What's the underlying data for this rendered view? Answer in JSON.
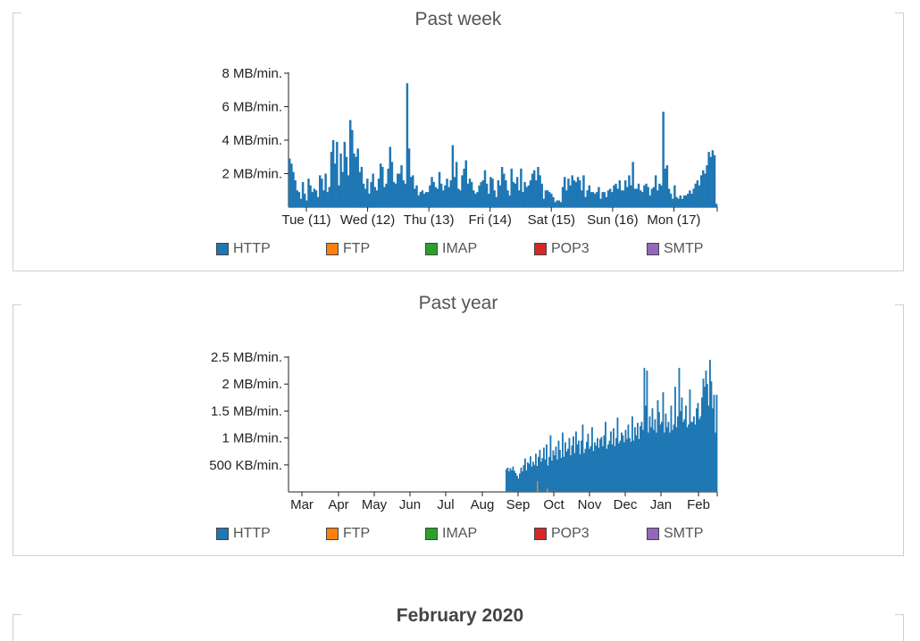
{
  "panels": {
    "week": {
      "title": "Past week"
    },
    "year": {
      "title": "Past year"
    }
  },
  "month_heading": "February 2020",
  "legend": [
    {
      "label": "HTTP",
      "color": "#1f77b4"
    },
    {
      "label": "FTP",
      "color": "#ff7f0e"
    },
    {
      "label": "IMAP",
      "color": "#2ca02c"
    },
    {
      "label": "POP3",
      "color": "#d62728"
    },
    {
      "label": "SMTP",
      "color": "#9467bd"
    }
  ],
  "chart_data": [
    {
      "type": "bar",
      "title": "Past week",
      "x_ticks": [
        "Tue (11)",
        "Wed (12)",
        "Thu (13)",
        "Fri (14)",
        "Sat (15)",
        "Sun (16)",
        "Mon (17)"
      ],
      "y_ticks": [
        "2 MB/min.",
        "4 MB/min.",
        "6 MB/min.",
        "8 MB/min."
      ],
      "ylim": [
        0,
        8
      ],
      "series": [
        {
          "name": "HTTP",
          "color": "#1f77b4",
          "values": [
            2.9,
            2.6,
            2.1,
            1.6,
            1.0,
            0.9,
            0.5,
            1.5,
            0.8,
            0.4,
            1.7,
            1.3,
            0.9,
            1.1,
            1.0,
            0.6,
            1.9,
            1.7,
            1.0,
            2.0,
            0.9,
            1.2,
            3.3,
            4.0,
            2.6,
            3.9,
            1.3,
            3.2,
            2.1,
            3.9,
            3.0,
            1.9,
            5.2,
            4.6,
            3.2,
            3.0,
            3.5,
            2.1,
            2.4,
            1.4,
            1.1,
            1.7,
            0.8,
            1.5,
            2.0,
            1.2,
            1.0,
            1.7,
            2.6,
            2.4,
            1.2,
            1.4,
            2.3,
            3.6,
            2.7,
            1.5,
            1.4,
            2.0,
            2.0,
            2.5,
            1.6,
            1.4,
            7.4,
            3.5,
            1.8,
            1.9,
            1.1,
            1.3,
            0.7,
            0.9,
            1.0,
            0.8,
            0.9,
            0.9,
            1.3,
            1.8,
            1.5,
            1.2,
            1.1,
            2.1,
            1.4,
            1.0,
            1.3,
            1.7,
            1.2,
            1.6,
            3.7,
            1.8,
            2.7,
            1.1,
            1.0,
            1.9,
            2.3,
            2.8,
            1.4,
            1.7,
            1.5,
            1.0,
            0.8,
            0.9,
            1.3,
            1.5,
            1.6,
            2.2,
            1.4,
            0.8,
            1.8,
            1.7,
            1.0,
            0.6,
            1.6,
            1.3,
            2.4,
            2.0,
            1.6,
            1.0,
            0.7,
            2.3,
            1.5,
            1.4,
            1.8,
            1.0,
            2.3,
            0.9,
            1.5,
            1.2,
            1.3,
            1.6,
            2.0,
            2.2,
            1.6,
            2.4,
            1.9,
            1.4,
            0.5,
            1.0,
            1.0,
            0.9,
            0.8,
            0.6,
            0.3,
            0.4,
            0.4,
            0.3,
            1.2,
            1.8,
            1.0,
            1.7,
            1.3,
            1.9,
            1.6,
            1.5,
            1.8,
            1.6,
            1.0,
            1.9,
            0.6,
            1.0,
            1.3,
            0.9,
            0.9,
            0.8,
            0.9,
            1.2,
            0.5,
            0.9,
            0.9,
            0.6,
            1.0,
            1.1,
            0.9,
            1.3,
            1.4,
            1.1,
            1.6,
            1.0,
            1.0,
            1.6,
            1.2,
            1.9,
            1.3,
            2.7,
            1.1,
            1.1,
            1.4,
            1.0,
            0.9,
            1.3,
            1.4,
            1.2,
            0.7,
            1.1,
            1.2,
            1.9,
            1.0,
            1.4,
            1.3,
            5.7,
            2.3,
            2.5,
            1.1,
            0.8,
            0.5,
            1.3,
            0.6,
            0.5,
            0.7,
            0.5,
            0.7,
            0.7,
            0.8,
            1.0,
            0.8,
            1.1,
            1.4,
            1.6,
            1.3,
            1.9,
            2.2,
            2.0,
            2.5,
            3.3,
            3.0,
            3.4,
            3.1,
            0.2
          ]
        }
      ]
    },
    {
      "type": "bar",
      "title": "Past year",
      "x_ticks": [
        "Mar",
        "Apr",
        "May",
        "Jun",
        "Jul",
        "Aug",
        "Sep",
        "Oct",
        "Nov",
        "Dec",
        "Jan",
        "Feb"
      ],
      "y_ticks": [
        "500 KB/min.",
        "1 MB/min.",
        "1.5 MB/min.",
        "2 MB/min.",
        "2.5 MB/min."
      ],
      "ylim": [
        0,
        2.5
      ],
      "series": [
        {
          "name": "HTTP",
          "color": "#1f77b4",
          "values": [
            0.42,
            0.45,
            0.38,
            0.44,
            0.4,
            0.47,
            0.39,
            0.35,
            0.3,
            0.25,
            0.34,
            0.45,
            0.38,
            0.5,
            0.62,
            0.4,
            0.55,
            0.52,
            0.66,
            0.47,
            0.56,
            0.5,
            0.71,
            0.48,
            0.65,
            0.78,
            0.56,
            0.63,
            0.82,
            0.6,
            0.88,
            0.49,
            0.65,
            1.05,
            0.58,
            0.77,
            0.68,
            0.84,
            0.6,
            0.95,
            0.78,
            0.63,
            1.1,
            0.65,
            0.92,
            0.75,
            0.8,
            1.0,
            0.68,
            0.86,
            1.03,
            0.72,
            1.12,
            0.88,
            0.95,
            0.7,
            0.95,
            1.25,
            0.72,
            0.8,
            0.93,
            1.08,
            0.8,
            0.85,
            1.2,
            0.76,
            0.92,
            0.86,
            1.0,
            0.82,
            0.98,
            1.02,
            0.85,
            1.05,
            1.3,
            0.8,
            0.88,
            0.95,
            1.12,
            0.88,
            1.18,
            0.85,
            1.0,
            1.38,
            0.9,
            0.95,
            1.1,
            1.05,
            0.92,
            1.15,
            0.98,
            1.25,
            1.0,
            0.93,
            1.4,
            0.95,
            1.2,
            1.05,
            1.28,
            0.98,
            1.22,
            1.3,
            1.15,
            2.3,
            1.6,
            2.25,
            1.1,
            1.4,
            1.2,
            1.55,
            1.15,
            1.35,
            1.1,
            1.7,
            1.48,
            1.25,
            1.3,
            1.85,
            1.1,
            1.45,
            1.2,
            1.3,
            1.1,
            1.6,
            1.15,
            1.25,
            1.95,
            1.2,
            1.4,
            2.3,
            1.5,
            1.75,
            1.3,
            1.35,
            1.6,
            1.2,
            1.25,
            1.9,
            1.3,
            1.3,
            1.4,
            1.25,
            1.55,
            1.65,
            1.35,
            1.4,
            1.75,
            2.1,
            1.95,
            2.25,
            2.0,
            1.6,
            2.45,
            2.05,
            1.55,
            1.8,
            1.1,
            1.8
          ]
        },
        {
          "name": "FTP",
          "color": "#ff7f0e",
          "values": [
            0.2,
            0.06
          ]
        }
      ]
    }
  ]
}
